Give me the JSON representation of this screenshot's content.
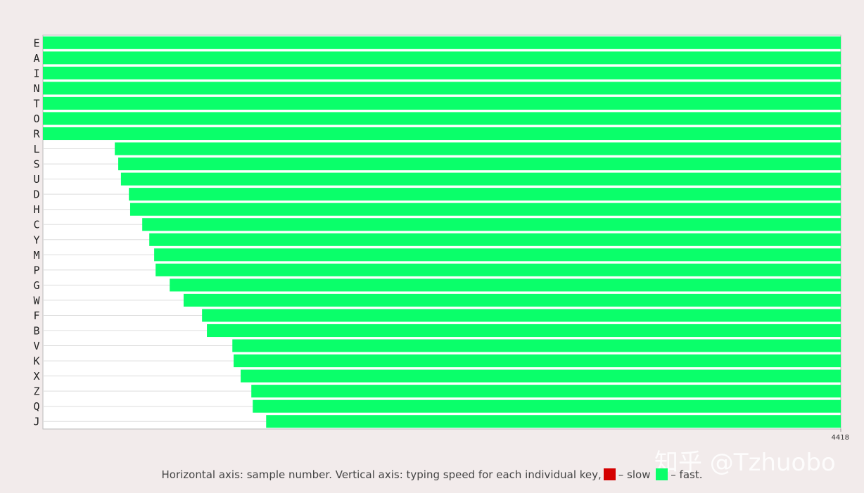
{
  "chart_data": {
    "type": "timeline",
    "categories": [
      "E",
      "A",
      "I",
      "N",
      "T",
      "O",
      "R",
      "L",
      "S",
      "U",
      "D",
      "H",
      "C",
      "Y",
      "M",
      "P",
      "G",
      "W",
      "F",
      "B",
      "V",
      "K",
      "X",
      "Z",
      "Q",
      "J"
    ],
    "values": [
      0,
      0,
      0,
      0,
      0,
      0,
      0,
      398,
      417,
      432,
      476,
      483,
      550,
      589,
      616,
      624,
      702,
      779,
      881,
      908,
      1049,
      1056,
      1095,
      1154,
      1162,
      1236
    ],
    "color": "#0aff6a",
    "xlim": [
      0,
      4418
    ],
    "xticks": [
      4418
    ],
    "caption": "Horizontal axis: sample number. Vertical axis: typing speed for each individual key,",
    "legend": [
      {
        "label": "– slow",
        "color": "#d40000"
      },
      {
        "label": "– fast.",
        "color": "#0aff6a"
      }
    ],
    "watermark": "知乎 @Tzhuobo"
  }
}
